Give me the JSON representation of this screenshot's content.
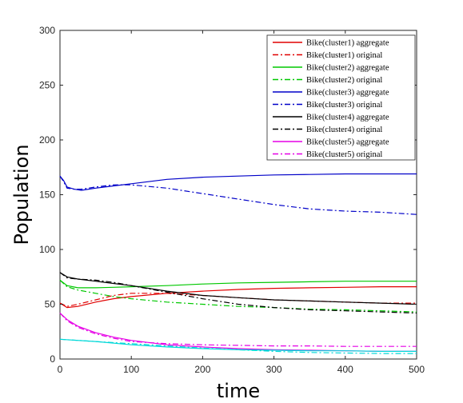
{
  "chart_data": {
    "type": "line",
    "title": "",
    "xlabel": "time",
    "ylabel": "Population",
    "xlim": [
      0,
      500
    ],
    "ylim": [
      0,
      300
    ],
    "xticks": [
      0,
      100,
      200,
      300,
      400,
      500
    ],
    "yticks": [
      0,
      50,
      100,
      150,
      200,
      250,
      300
    ],
    "grid": false,
    "legend_position": "top-right",
    "series": [
      {
        "name": "Bike(cluster1) aggregate",
        "color": "#e00000",
        "style": "solid",
        "points": [
          [
            0,
            51
          ],
          [
            10,
            47
          ],
          [
            25,
            48
          ],
          [
            50,
            52
          ],
          [
            75,
            55
          ],
          [
            100,
            57
          ],
          [
            150,
            60
          ],
          [
            200,
            62
          ],
          [
            250,
            63.5
          ],
          [
            300,
            64.5
          ],
          [
            350,
            65
          ],
          [
            400,
            65.5
          ],
          [
            450,
            66
          ],
          [
            500,
            66
          ]
        ]
      },
      {
        "name": "Bike(cluster1) original",
        "color": "#e00000",
        "style": "dashdot",
        "points": [
          [
            0,
            51
          ],
          [
            10,
            48
          ],
          [
            25,
            50
          ],
          [
            50,
            54
          ],
          [
            75,
            58
          ],
          [
            100,
            60
          ],
          [
            150,
            60
          ],
          [
            200,
            58
          ],
          [
            250,
            56
          ],
          [
            300,
            54
          ],
          [
            350,
            53
          ],
          [
            400,
            52
          ],
          [
            450,
            51
          ],
          [
            500,
            51
          ]
        ]
      },
      {
        "name": "Bike(cluster2) aggregate",
        "color": "#00c800",
        "style": "solid",
        "points": [
          [
            0,
            72
          ],
          [
            10,
            67
          ],
          [
            25,
            65
          ],
          [
            50,
            65
          ],
          [
            75,
            65.5
          ],
          [
            100,
            66
          ],
          [
            150,
            67
          ],
          [
            200,
            68.5
          ],
          [
            250,
            69.5
          ],
          [
            300,
            70
          ],
          [
            350,
            70.5
          ],
          [
            400,
            71
          ],
          [
            450,
            71
          ],
          [
            500,
            71
          ]
        ]
      },
      {
        "name": "Bike(cluster2) original",
        "color": "#00c800",
        "style": "dashdot",
        "points": [
          [
            0,
            72
          ],
          [
            10,
            66
          ],
          [
            25,
            63
          ],
          [
            50,
            60
          ],
          [
            75,
            57
          ],
          [
            100,
            55
          ],
          [
            150,
            52
          ],
          [
            200,
            50
          ],
          [
            250,
            48
          ],
          [
            300,
            47
          ],
          [
            350,
            45.5
          ],
          [
            400,
            45
          ],
          [
            450,
            44
          ],
          [
            500,
            43
          ]
        ]
      },
      {
        "name": "Bike(cluster3) aggregate",
        "color": "#0000c8",
        "style": "solid",
        "points": [
          [
            0,
            167
          ],
          [
            5,
            163
          ],
          [
            10,
            157
          ],
          [
            20,
            155
          ],
          [
            30,
            154
          ],
          [
            50,
            156
          ],
          [
            75,
            158
          ],
          [
            100,
            160
          ],
          [
            150,
            164
          ],
          [
            200,
            166
          ],
          [
            250,
            167
          ],
          [
            300,
            168
          ],
          [
            350,
            168.5
          ],
          [
            400,
            169
          ],
          [
            450,
            169
          ],
          [
            500,
            169
          ]
        ]
      },
      {
        "name": "Bike(cluster3) original",
        "color": "#0000c8",
        "style": "dashdot",
        "points": [
          [
            0,
            167
          ],
          [
            5,
            162
          ],
          [
            10,
            156
          ],
          [
            20,
            155
          ],
          [
            30,
            155
          ],
          [
            50,
            157
          ],
          [
            75,
            159
          ],
          [
            100,
            159
          ],
          [
            150,
            156
          ],
          [
            200,
            151
          ],
          [
            250,
            146
          ],
          [
            300,
            141
          ],
          [
            350,
            137
          ],
          [
            400,
            135
          ],
          [
            450,
            134
          ],
          [
            500,
            132
          ]
        ]
      },
      {
        "name": "Bike(cluster4) aggregate",
        "color": "#000000",
        "style": "solid",
        "points": [
          [
            0,
            79
          ],
          [
            10,
            75
          ],
          [
            25,
            73
          ],
          [
            50,
            71
          ],
          [
            75,
            69
          ],
          [
            100,
            67
          ],
          [
            150,
            62
          ],
          [
            200,
            58
          ],
          [
            250,
            56
          ],
          [
            300,
            54
          ],
          [
            350,
            53
          ],
          [
            400,
            52
          ],
          [
            450,
            51
          ],
          [
            500,
            50
          ]
        ]
      },
      {
        "name": "Bike(cluster4) original",
        "color": "#000000",
        "style": "dashdot",
        "points": [
          [
            0,
            79
          ],
          [
            10,
            74
          ],
          [
            25,
            73
          ],
          [
            50,
            72
          ],
          [
            75,
            70
          ],
          [
            100,
            67
          ],
          [
            150,
            61
          ],
          [
            200,
            55
          ],
          [
            250,
            50
          ],
          [
            300,
            47
          ],
          [
            350,
            45
          ],
          [
            400,
            44
          ],
          [
            450,
            43
          ],
          [
            500,
            42
          ]
        ]
      },
      {
        "name": "Bike(cluster5) aggregate",
        "color": "#e600e6",
        "style": "solid",
        "points": [
          [
            0,
            42
          ],
          [
            10,
            36
          ],
          [
            25,
            30
          ],
          [
            50,
            24
          ],
          [
            75,
            20
          ],
          [
            100,
            17
          ],
          [
            150,
            13
          ],
          [
            200,
            11
          ],
          [
            250,
            9.5
          ],
          [
            300,
            8.5
          ],
          [
            350,
            8
          ],
          [
            400,
            7.5
          ],
          [
            450,
            7
          ],
          [
            500,
            7
          ]
        ]
      },
      {
        "name": "Bike(cluster5) original",
        "color": "#e600e6",
        "style": "dashdot",
        "points": [
          [
            0,
            42
          ],
          [
            10,
            35
          ],
          [
            25,
            29
          ],
          [
            50,
            23
          ],
          [
            75,
            19
          ],
          [
            100,
            16
          ],
          [
            150,
            14
          ],
          [
            200,
            13
          ],
          [
            250,
            12.5
          ],
          [
            300,
            12
          ],
          [
            350,
            12
          ],
          [
            400,
            11.5
          ],
          [
            450,
            11.5
          ],
          [
            500,
            11.5
          ]
        ]
      },
      {
        "name": "",
        "color": "#00d8d8",
        "style": "solid",
        "points": [
          [
            0,
            18
          ],
          [
            50,
            16
          ],
          [
            100,
            13
          ],
          [
            150,
            11
          ],
          [
            200,
            9.5
          ],
          [
            250,
            8.5
          ],
          [
            300,
            8
          ],
          [
            350,
            7.5
          ],
          [
            400,
            7.5
          ],
          [
            450,
            7
          ],
          [
            500,
            7
          ]
        ]
      },
      {
        "name": "",
        "color": "#00d8d8",
        "style": "dashdot",
        "points": [
          [
            0,
            18
          ],
          [
            50,
            16
          ],
          [
            100,
            14
          ],
          [
            150,
            12
          ],
          [
            200,
            10
          ],
          [
            250,
            8.5
          ],
          [
            300,
            7
          ],
          [
            350,
            6
          ],
          [
            400,
            5.5
          ],
          [
            450,
            5
          ],
          [
            500,
            5
          ]
        ]
      }
    ]
  }
}
